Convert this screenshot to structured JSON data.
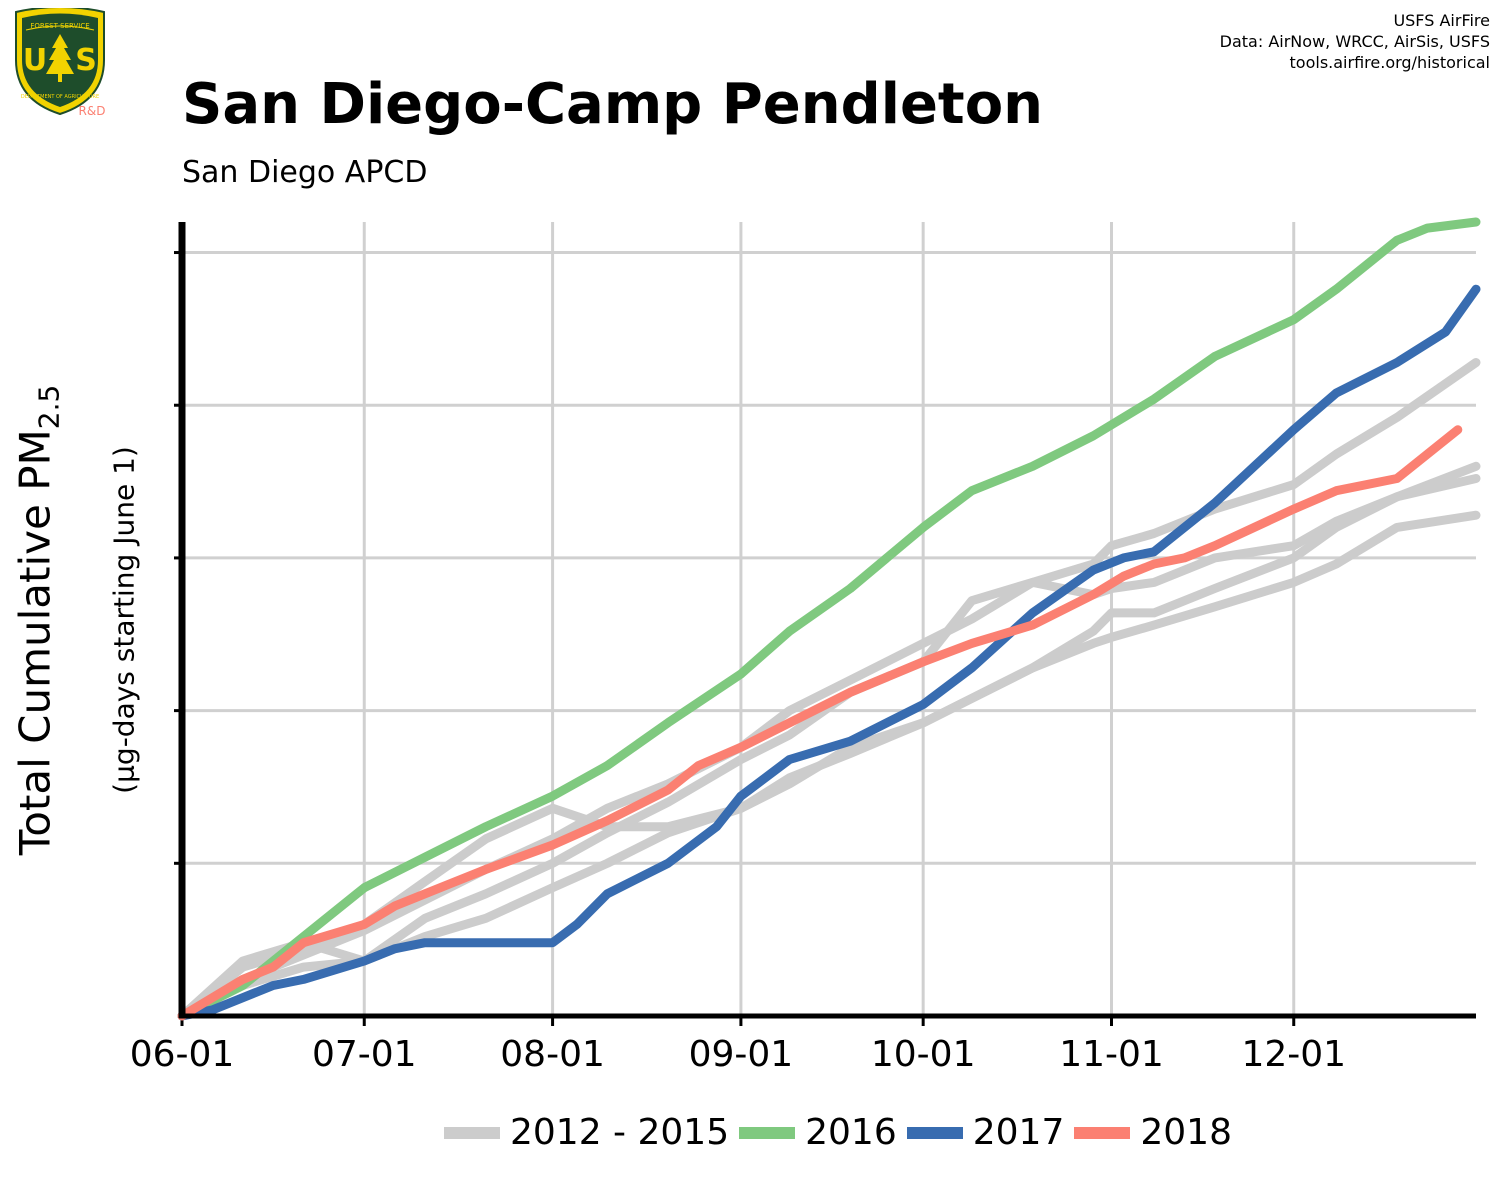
{
  "header": {
    "title": "San Diego-Camp Pendleton",
    "subtitle": "San Diego APCD",
    "credits": [
      "USFS AirFire",
      "Data: AirNow, WRCC, AirSis, USFS",
      "tools.airfire.org/historical"
    ]
  },
  "logo": {
    "top_text": "FOREST SERVICE",
    "letters": "US",
    "bottom_text": "DEPARTMENT OF AGRICULTURE",
    "tag": "R&D"
  },
  "colors": {
    "historical": "#cccccc",
    "2016": "#7fc97f",
    "2017": "#386cb0",
    "2018": "#fb8072",
    "grid": "#d0d0d0",
    "logo_green": "#1e4d2b",
    "logo_yellow": "#f2d300"
  },
  "chart_data": {
    "type": "line",
    "title": "San Diego-Camp Pendleton",
    "subtitle": "San Diego APCD",
    "ylabel": "Total Cumulative PM",
    "ylabel_sub": "2.5",
    "ylabel_units": "(µg-days starting June 1)",
    "xlabel": "",
    "x_ticks": [
      "06-01",
      "07-01",
      "08-01",
      "09-01",
      "10-01",
      "11-01",
      "12-01"
    ],
    "x_tick_days": [
      0,
      30,
      61,
      92,
      122,
      153,
      183
    ],
    "xlim": [
      0,
      213
    ],
    "ylim": [
      0,
      130
    ],
    "y_gridlines": [
      25,
      50,
      75,
      100,
      125
    ],
    "y_tick_labels_shown": false,
    "grid": true,
    "legend": {
      "position": "bottom",
      "entries": [
        "2012 - 2015",
        "2016",
        "2017",
        "2018"
      ]
    },
    "series": [
      {
        "name": "2012 - 2015",
        "color": "#cccccc",
        "x": [
          0,
          10,
          20,
          30,
          40,
          50,
          61,
          70,
          80,
          92,
          100,
          110,
          122,
          130,
          140,
          150,
          153,
          160,
          170,
          183,
          190,
          200,
          213
        ],
        "y": [
          0,
          6,
          10,
          14,
          19,
          24,
          29,
          34,
          38,
          44,
          50,
          55,
          61,
          65,
          71,
          74,
          77,
          79,
          83,
          87,
          92,
          98,
          107
        ]
      },
      {
        "name": "2012 - 2015",
        "color": "#cccccc",
        "x": [
          0,
          10,
          20,
          30,
          40,
          50,
          61,
          70,
          80,
          92,
          100,
          110,
          122,
          130,
          140,
          150,
          153,
          160,
          170,
          183,
          190,
          200,
          213
        ],
        "y": [
          0,
          9,
          12,
          9,
          16,
          20,
          25,
          30,
          35,
          42,
          46,
          53,
          58,
          68,
          71,
          69,
          70,
          71,
          75,
          77,
          81,
          85,
          90
        ]
      },
      {
        "name": "2012 - 2015",
        "color": "#cccccc",
        "x": [
          0,
          10,
          20,
          30,
          40,
          50,
          61,
          70,
          80,
          92,
          100,
          110,
          122,
          130,
          140,
          150,
          153,
          160,
          170,
          183,
          190,
          200,
          213
        ],
        "y": [
          0,
          8,
          11,
          15,
          22,
          29,
          34,
          31,
          31,
          34,
          39,
          43,
          48,
          52,
          57,
          63,
          66,
          66,
          70,
          75,
          80,
          85,
          88
        ]
      },
      {
        "name": "2012 - 2015",
        "color": "#cccccc",
        "x": [
          0,
          10,
          20,
          30,
          40,
          50,
          61,
          70,
          80,
          92,
          100,
          110,
          122,
          130,
          140,
          150,
          153,
          160,
          170,
          183,
          190,
          200,
          213
        ],
        "y": [
          0,
          5,
          8,
          9,
          13,
          16,
          21,
          25,
          30,
          34,
          38,
          44,
          48,
          52,
          57,
          61,
          62,
          64,
          67,
          71,
          74,
          80,
          82
        ]
      },
      {
        "name": "2016",
        "color": "#7fc97f",
        "x": [
          0,
          10,
          20,
          30,
          40,
          50,
          61,
          70,
          80,
          92,
          100,
          110,
          122,
          130,
          140,
          150,
          160,
          170,
          183,
          190,
          200,
          205,
          213
        ],
        "y": [
          0,
          5,
          13,
          21,
          26,
          31,
          36,
          41,
          48,
          56,
          63,
          70,
          80,
          86,
          90,
          95,
          101,
          108,
          114,
          119,
          127,
          129,
          130
        ]
      },
      {
        "name": "2017",
        "color": "#386cb0",
        "x": [
          0,
          5,
          10,
          15,
          20,
          30,
          35,
          40,
          50,
          61,
          65,
          70,
          80,
          88,
          92,
          100,
          110,
          122,
          130,
          140,
          150,
          155,
          160,
          170,
          183,
          190,
          200,
          208,
          213
        ],
        "y": [
          0,
          1,
          3,
          5,
          6,
          9,
          11,
          12,
          12,
          12,
          15,
          20,
          25,
          31,
          36,
          42,
          45,
          51,
          57,
          66,
          73,
          75,
          76,
          84,
          96,
          102,
          107,
          112,
          119
        ]
      },
      {
        "name": "2018",
        "color": "#fb8072",
        "x": [
          0,
          5,
          10,
          15,
          20,
          30,
          35,
          40,
          50,
          61,
          70,
          80,
          85,
          92,
          100,
          110,
          122,
          130,
          140,
          150,
          155,
          160,
          165,
          170,
          183,
          190,
          200,
          205,
          210
        ],
        "y": [
          0,
          3,
          6,
          8,
          12,
          15,
          18,
          20,
          24,
          28,
          32,
          37,
          41,
          44,
          48,
          53,
          58,
          61,
          64,
          69,
          72,
          74,
          75,
          77,
          83,
          86,
          88,
          92,
          96
        ]
      }
    ]
  }
}
